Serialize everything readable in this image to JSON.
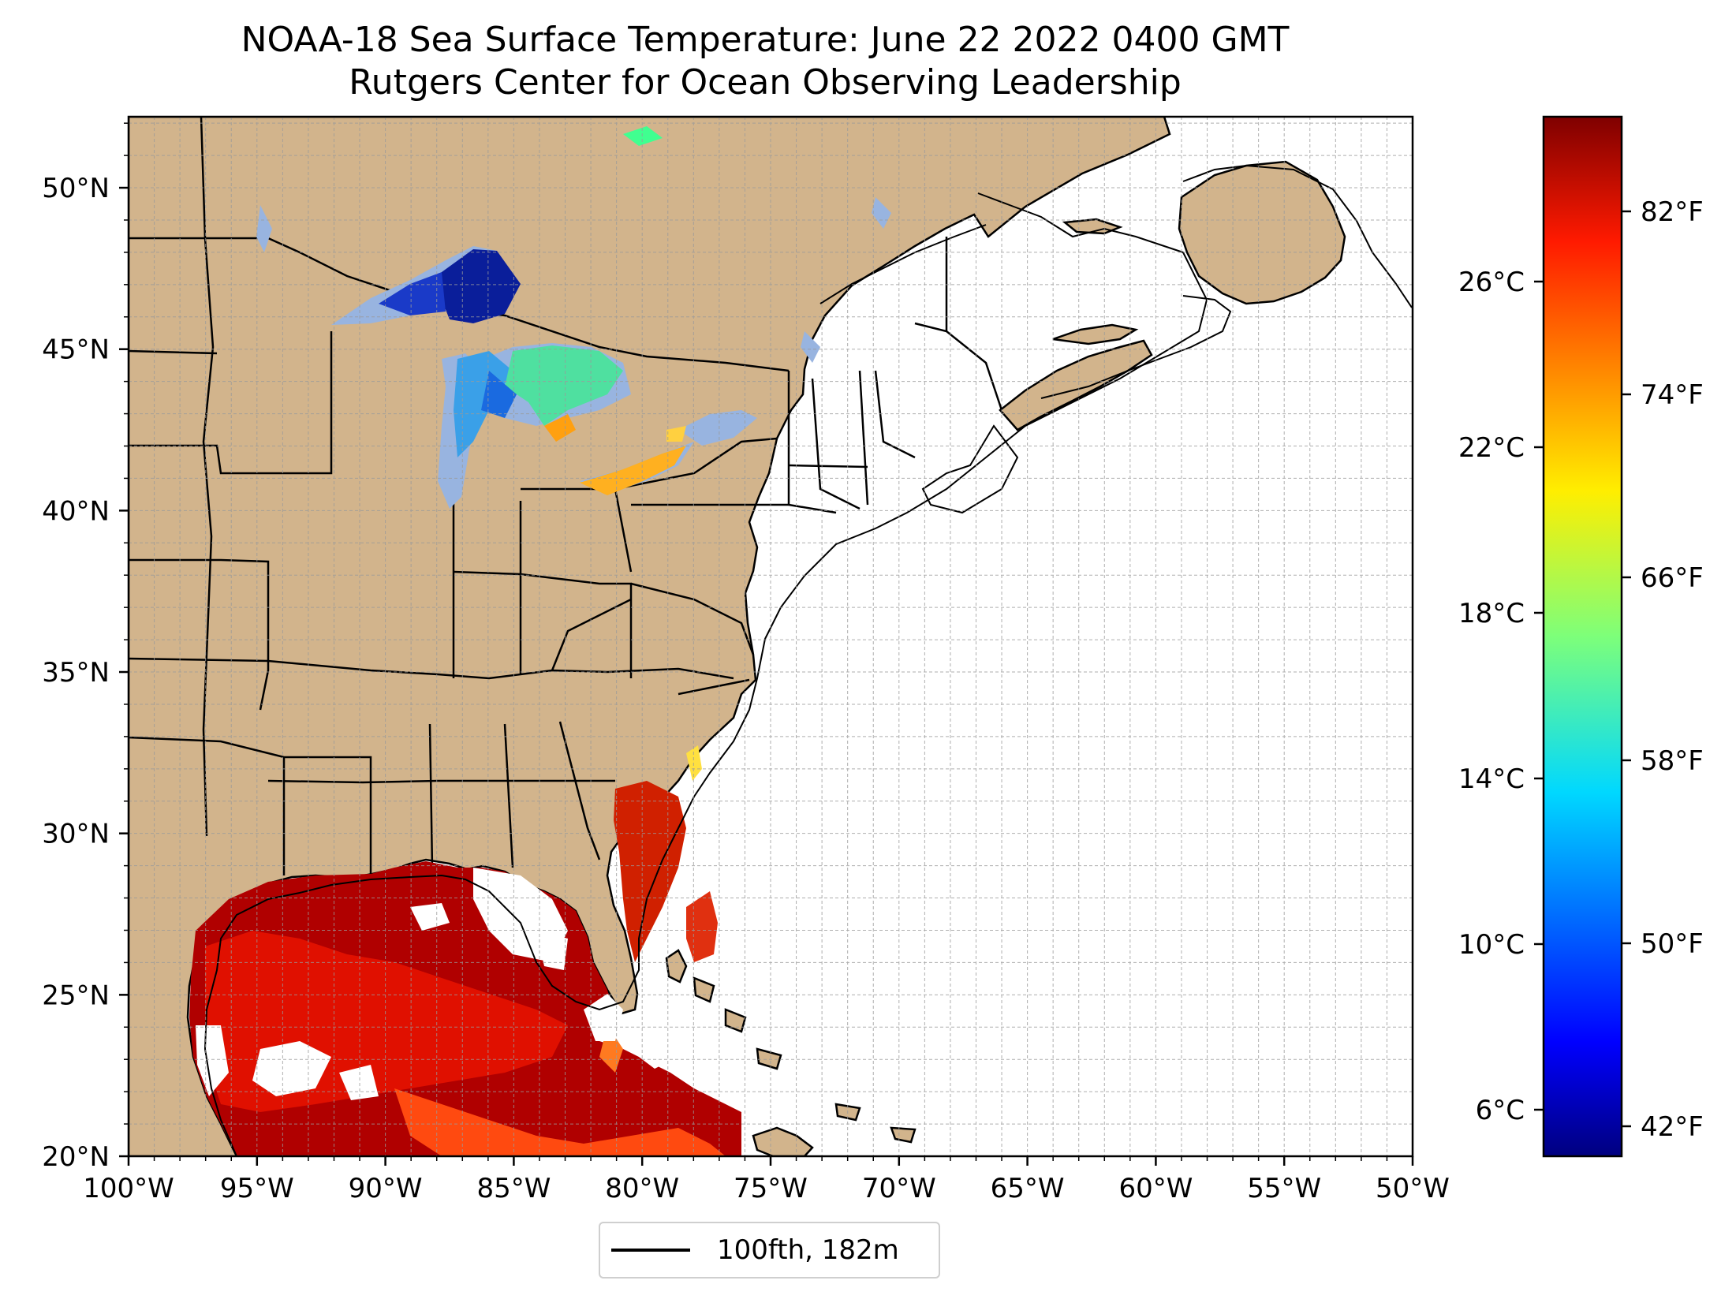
{
  "title": {
    "line1": "NOAA-18 Sea Surface Temperature: June 22 2022 0400 GMT",
    "line2": "Rutgers Center for Ocean Observing Leadership"
  },
  "map": {
    "lon_ticks": [
      "100°W",
      "95°W",
      "90°W",
      "85°W",
      "80°W",
      "75°W",
      "70°W",
      "65°W",
      "60°W",
      "55°W",
      "50°W"
    ],
    "lat_ticks": [
      "20°N",
      "25°N",
      "30°N",
      "35°N",
      "40°N",
      "45°N",
      "50°N"
    ],
    "extent": {
      "lon": [
        -100,
        -50
      ],
      "lat": [
        20,
        52.2
      ]
    },
    "land_color": "#d2b48c",
    "lake_color": "#98b4e0"
  },
  "legend": {
    "label": "100fth, 182m"
  },
  "colorbar": {
    "colormap": "jet",
    "fahrenheit_ticks": [
      "82°F",
      "74°F",
      "66°F",
      "58°F",
      "50°F",
      "42°F"
    ],
    "celsius_ticks": [
      "26°C",
      "22°C",
      "18°C",
      "14°C",
      "10°C",
      "6°C"
    ]
  }
}
